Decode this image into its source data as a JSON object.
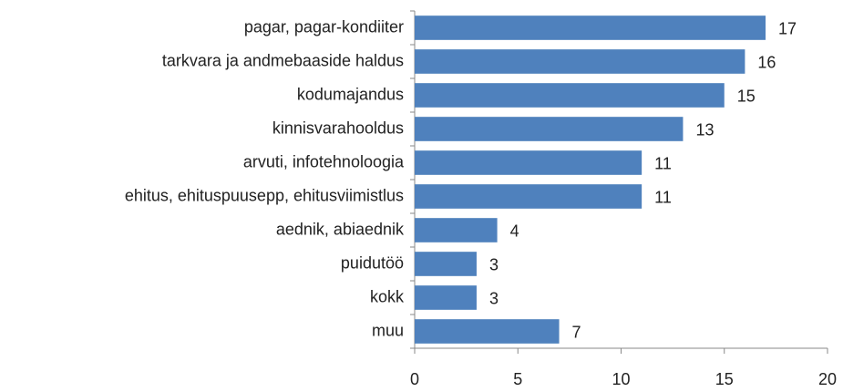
{
  "chart_data": {
    "type": "bar",
    "orientation": "horizontal",
    "categories": [
      "pagar, pagar-kondiiter",
      "tarkvara ja andmebaaside haldus",
      "kodumajandus",
      "kinnisvarahooldus",
      "arvuti, infotehnoloogia",
      "ehitus, ehituspuusepp, ehitusviimistlus",
      "aednik, abiaednik",
      "puidutöö",
      "kokk",
      "muu"
    ],
    "values": [
      17,
      16,
      15,
      13,
      11,
      11,
      4,
      3,
      3,
      7
    ],
    "color": "#4f81bd",
    "xlim": [
      0,
      20
    ],
    "xticks": [
      0,
      5,
      10,
      15,
      20
    ],
    "grid": false
  }
}
